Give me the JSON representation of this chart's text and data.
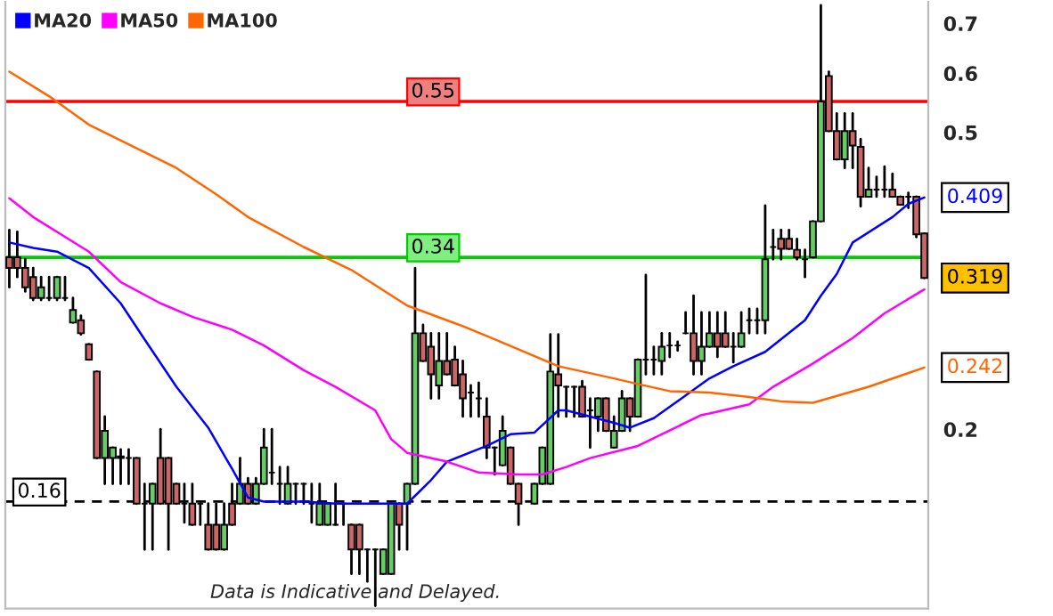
{
  "chart_data": {
    "type": "candlestick",
    "categories": [
      null,
      null,
      null,
      null,
      null,
      null,
      null,
      null,
      null,
      null,
      null,
      null,
      null,
      null,
      null,
      null,
      null,
      null,
      null,
      null,
      null,
      null,
      null,
      null,
      null,
      null,
      null,
      null,
      null,
      null,
      null,
      null,
      null,
      null,
      null,
      null,
      null,
      null,
      null,
      null,
      null,
      null,
      null,
      null,
      null,
      null,
      null,
      null,
      null,
      null,
      null,
      null,
      null,
      null,
      null,
      null,
      null,
      null,
      null,
      null,
      null,
      null,
      null,
      null,
      null,
      null,
      null,
      null,
      null,
      null,
      null,
      null,
      null,
      null,
      null,
      null,
      null,
      null,
      null,
      null,
      null,
      null,
      null,
      null,
      null,
      null,
      null,
      null,
      null,
      null,
      null,
      null,
      null,
      null,
      null,
      null,
      null,
      null,
      null,
      null,
      null,
      null,
      null,
      null,
      null,
      null,
      null,
      null,
      null,
      null,
      null,
      null,
      null,
      null,
      null,
      null
    ],
    "ohlc": [
      [
        0.34,
        0.37,
        0.31,
        0.329
      ],
      [
        0.34,
        0.368,
        0.32,
        0.329
      ],
      [
        0.329,
        0.338,
        0.306,
        0.31
      ],
      [
        0.32,
        0.329,
        0.298,
        0.3
      ],
      [
        0.3,
        0.32,
        0.298,
        0.31
      ],
      [
        0.3,
        0.32,
        0.298,
        0.3
      ],
      [
        0.3,
        0.32,
        0.298,
        0.32
      ],
      [
        0.3,
        0.32,
        0.298,
        0.3
      ],
      [
        0.278,
        0.3,
        0.278,
        0.289
      ],
      [
        0.28,
        0.284,
        0.268,
        0.269
      ],
      [
        0.26,
        0.26,
        0.248,
        0.248
      ],
      [
        0.239,
        0.239,
        0.183,
        0.183
      ],
      [
        0.183,
        0.208,
        0.169,
        0.199
      ],
      [
        0.183,
        0.189,
        0.169,
        0.189
      ],
      [
        0.184,
        0.188,
        0.169,
        0.183
      ],
      [
        0.183,
        0.188,
        0.169,
        0.183
      ],
      [
        0.183,
        0.183,
        0.159,
        0.159
      ],
      [
        0.159,
        0.169,
        0.138,
        0.159
      ],
      [
        0.159,
        0.169,
        0.138,
        0.169
      ],
      [
        0.183,
        0.2,
        0.159,
        0.159
      ],
      [
        0.183,
        0.183,
        0.138,
        0.159
      ],
      [
        0.169,
        0.169,
        0.159,
        0.159
      ],
      [
        0.159,
        0.169,
        0.15,
        0.159
      ],
      [
        0.159,
        0.169,
        0.149,
        0.149
      ],
      [
        0.159,
        0.159,
        0.149,
        0.159
      ],
      [
        0.149,
        0.159,
        0.138,
        0.138
      ],
      [
        0.149,
        0.159,
        0.138,
        0.138
      ],
      [
        0.138,
        0.159,
        0.138,
        0.149
      ],
      [
        0.159,
        0.169,
        0.149,
        0.149
      ],
      [
        0.159,
        0.183,
        0.159,
        0.169
      ],
      [
        0.169,
        0.172,
        0.159,
        0.159
      ],
      [
        0.159,
        0.172,
        0.159,
        0.169
      ],
      [
        0.169,
        0.2,
        0.169,
        0.189
      ],
      [
        0.175,
        0.2,
        0.169,
        0.175
      ],
      [
        0.169,
        0.178,
        0.159,
        0.169
      ],
      [
        0.159,
        0.178,
        0.159,
        0.169
      ],
      [
        0.169,
        0.169,
        0.159,
        0.169
      ],
      [
        0.169,
        0.169,
        0.159,
        0.169
      ],
      [
        0.159,
        0.169,
        0.15,
        0.159
      ],
      [
        0.149,
        0.169,
        0.149,
        0.159
      ],
      [
        0.149,
        0.159,
        0.149,
        0.159
      ],
      [
        0.149,
        0.169,
        0.149,
        0.149
      ],
      [
        0.159,
        0.159,
        0.149,
        0.159
      ],
      [
        0.149,
        0.149,
        0.128,
        0.138
      ],
      [
        0.149,
        0.149,
        0.128,
        0.138
      ],
      [
        0.138,
        0.138,
        0.125,
        0.138
      ],
      [
        0.138,
        0.138,
        0.116,
        0.138
      ],
      [
        0.128,
        0.138,
        0.128,
        0.138
      ],
      [
        0.128,
        0.159,
        0.128,
        0.159
      ],
      [
        0.159,
        0.159,
        0.138,
        0.149
      ],
      [
        0.159,
        0.169,
        0.138,
        0.169
      ],
      [
        0.169,
        0.329,
        0.169,
        0.269
      ],
      [
        0.269,
        0.276,
        0.247,
        0.247
      ],
      [
        0.258,
        0.269,
        0.22,
        0.237
      ],
      [
        0.229,
        0.269,
        0.22,
        0.247
      ],
      [
        0.247,
        0.269,
        0.237,
        0.237
      ],
      [
        0.248,
        0.258,
        0.229,
        0.229
      ],
      [
        0.237,
        0.247,
        0.208,
        0.22
      ],
      [
        0.224,
        0.229,
        0.208,
        0.224
      ],
      [
        0.22,
        0.231,
        0.208,
        0.22
      ],
      [
        0.208,
        0.22,
        0.183,
        0.189
      ],
      [
        0.189,
        0.189,
        0.174,
        0.189
      ],
      [
        0.179,
        0.208,
        0.179,
        0.199
      ],
      [
        0.189,
        0.189,
        0.169,
        0.169
      ],
      [
        0.169,
        0.169,
        0.149,
        0.159
      ],
      null,
      [
        0.159,
        0.169,
        0.159,
        0.169
      ],
      [
        0.169,
        0.189,
        0.169,
        0.189
      ],
      [
        0.169,
        0.268,
        0.169,
        0.239
      ],
      [
        0.237,
        0.268,
        0.208,
        0.229
      ],
      [
        0.228,
        0.228,
        0.208,
        0.228
      ],
      [
        0.228,
        0.228,
        0.208,
        0.228
      ],
      [
        0.228,
        0.232,
        0.208,
        0.208
      ],
      [
        0.212,
        0.22,
        0.189,
        0.212
      ],
      [
        0.208,
        0.22,
        0.199,
        0.22
      ],
      [
        0.22,
        0.22,
        0.199,
        0.199
      ],
      [
        0.189,
        0.208,
        0.189,
        0.199
      ],
      [
        0.199,
        0.225,
        0.199,
        0.22
      ],
      [
        0.22,
        0.22,
        0.199,
        0.208
      ],
      [
        0.208,
        0.248,
        0.208,
        0.248
      ],
      [
        0.248,
        0.322,
        0.237,
        0.248
      ],
      [
        0.248,
        0.258,
        0.237,
        0.248
      ],
      [
        0.247,
        0.269,
        0.237,
        0.258
      ],
      [
        0.259,
        0.269,
        0.25,
        0.259
      ],
      [
        0.259,
        0.262,
        0.255,
        0.259
      ],
      [
        0.269,
        0.287,
        0.269,
        0.269
      ],
      [
        0.269,
        0.302,
        0.237,
        0.247
      ],
      [
        0.247,
        0.287,
        0.237,
        0.258
      ],
      [
        0.258,
        0.287,
        0.258,
        0.269
      ],
      [
        0.269,
        0.287,
        0.25,
        0.258
      ],
      [
        0.269,
        0.287,
        0.258,
        0.258
      ],
      [
        0.258,
        0.269,
        0.246,
        0.258
      ],
      [
        0.258,
        0.287,
        0.258,
        0.269
      ],
      [
        0.28,
        0.29,
        0.269,
        0.28
      ],
      [
        0.28,
        0.29,
        0.269,
        0.28
      ],
      [
        0.28,
        0.399,
        0.269,
        0.338
      ],
      [
        0.351,
        0.37,
        0.338,
        0.351
      ],
      [
        0.36,
        0.37,
        0.338,
        0.349
      ],
      [
        0.36,
        0.37,
        0.349,
        0.349
      ],
      [
        0.348,
        0.36,
        0.338,
        0.34
      ],
      [
        0.338,
        0.348,
        0.32,
        0.338
      ],
      [
        0.34,
        0.38,
        0.34,
        0.38
      ],
      [
        0.38,
        0.74,
        0.38,
        0.55
      ],
      [
        0.595,
        0.603,
        0.502,
        0.502
      ],
      [
        0.502,
        0.53,
        0.46,
        0.46
      ],
      [
        0.46,
        0.53,
        0.448,
        0.502
      ],
      [
        0.502,
        0.53,
        0.448,
        0.48
      ],
      [
        0.478,
        0.49,
        0.398,
        0.41
      ],
      [
        0.41,
        0.448,
        0.41,
        0.419
      ],
      [
        0.419,
        0.436,
        0.41,
        0.419
      ],
      [
        0.419,
        0.45,
        0.41,
        0.419
      ],
      [
        0.419,
        0.44,
        0.41,
        0.41
      ],
      [
        0.41,
        0.41,
        0.4,
        0.4
      ],
      [
        0.41,
        0.415,
        0.396,
        0.41
      ],
      [
        0.41,
        0.41,
        0.362,
        0.365
      ],
      [
        0.366,
        0.366,
        0.319,
        0.319
      ]
    ],
    "series": [
      {
        "name": "MA20",
        "type": "line",
        "color": "#0000ff",
        "values": [
          0.356,
          null,
          null,
          0.35,
          null,
          null,
          0.346,
          null,
          null,
          null,
          0.329,
          null,
          null,
          null,
          0.295,
          null,
          null,
          0.264,
          null,
          null,
          null,
          0.228,
          null,
          null,
          null,
          0.201,
          null,
          null,
          0.177,
          null,
          0.162,
          null,
          0.16,
          null,
          null,
          null,
          null,
          0.16,
          null,
          null,
          null,
          0.159,
          null,
          null,
          null,
          null,
          null,
          null,
          null,
          null,
          0.159,
          null,
          null,
          0.171,
          null,
          0.181,
          null,
          null,
          null,
          null,
          0.19,
          null,
          null,
          0.197,
          null,
          null,
          0.198,
          null,
          null,
          0.212,
          0.212,
          null,
          null,
          0.208,
          null,
          null,
          0.204,
          null,
          0.201,
          null,
          null,
          0.207,
          null,
          null,
          null,
          0.222,
          null,
          null,
          0.234,
          null,
          null,
          0.243,
          null,
          null,
          null,
          0.254,
          null,
          null,
          null,
          null,
          0.28,
          null,
          0.302,
          null,
          0.323,
          null,
          0.356,
          null,
          null,
          null,
          null,
          0.385,
          null,
          0.401,
          null,
          0.409
        ]
      },
      {
        "name": "MA50",
        "type": "line",
        "color": "#ff00ff",
        "values": [
          0.408,
          null,
          null,
          0.385,
          null,
          null,
          null,
          null,
          null,
          null,
          0.346,
          null,
          null,
          null,
          0.315,
          null,
          null,
          null,
          null,
          0.295,
          null,
          null,
          null,
          0.283,
          null,
          null,
          null,
          null,
          0.272,
          null,
          null,
          null,
          0.259,
          null,
          null,
          null,
          null,
          0.24,
          null,
          null,
          null,
          0.228,
          null,
          null,
          null,
          null,
          0.212,
          null,
          0.194,
          null,
          0.186,
          null,
          null,
          null,
          null,
          0.181,
          null,
          null,
          null,
          0.175,
          null,
          null,
          null,
          null,
          0.174,
          null,
          null,
          0.174,
          null,
          null,
          0.178,
          null,
          null,
          0.183,
          null,
          null,
          null,
          null,
          null,
          0.19,
          null,
          null,
          0.197,
          null,
          null,
          null,
          null,
          0.209,
          0.21,
          null,
          null,
          null,
          null,
          0.216,
          null,
          null,
          0.228,
          null,
          null,
          null,
          null,
          0.245,
          null,
          null,
          null,
          null,
          0.265,
          null,
          null,
          null,
          0.286,
          null,
          null,
          null,
          null,
          0.308
        ]
      },
      {
        "name": "MA100",
        "type": "line",
        "color": "#ff6600",
        "values": [
          0.603,
          null,
          null,
          null,
          null,
          0.559,
          null,
          null,
          null,
          null,
          0.512,
          null,
          null,
          null,
          null,
          null,
          null,
          null,
          null,
          null,
          null,
          0.448,
          null,
          null,
          null,
          null,
          0.413,
          null,
          null,
          null,
          0.385,
          null,
          null,
          null,
          null,
          null,
          null,
          0.351,
          null,
          null,
          null,
          null,
          null,
          0.327,
          null,
          null,
          null,
          null,
          null,
          null,
          0.293,
          null,
          null,
          null,
          null,
          null,
          null,
          0.275,
          null,
          null,
          null,
          0.264,
          null,
          null,
          null,
          null,
          null,
          null,
          null,
          0.243,
          null,
          null,
          null,
          null,
          null,
          null,
          0.234,
          null,
          null,
          0.23,
          null,
          null,
          null,
          0.225,
          null,
          null,
          null,
          null,
          0.224,
          null,
          null,
          null,
          null,
          0.221,
          null,
          null,
          null,
          0.218,
          null,
          null,
          null,
          0.217,
          null,
          null,
          null,
          null,
          null,
          null,
          0.228,
          null,
          null,
          null,
          null,
          null,
          null,
          0.242
        ]
      }
    ],
    "log": true,
    "ylim": [
      0.115,
      0.748
    ],
    "yticks": [
      0.2,
      0.5,
      0.6,
      0.7
    ],
    "ref_lines": [
      {
        "axis": "y",
        "value": 0.55,
        "label": "0.55",
        "color": "#ff0000",
        "line_style": "solid"
      },
      {
        "axis": "y",
        "value": 0.34,
        "label": "0.34",
        "color": "#00cc00",
        "line_style": "solid"
      },
      {
        "axis": "y",
        "value": 0.16,
        "label": "0.16",
        "color": "#000000",
        "line_style": "dashed"
      }
    ],
    "annotations": [
      "0.409",
      "0.319",
      "0.242",
      "Data is Indicative and Delayed."
    ],
    "legend": "top left",
    "grid": false
  }
}
